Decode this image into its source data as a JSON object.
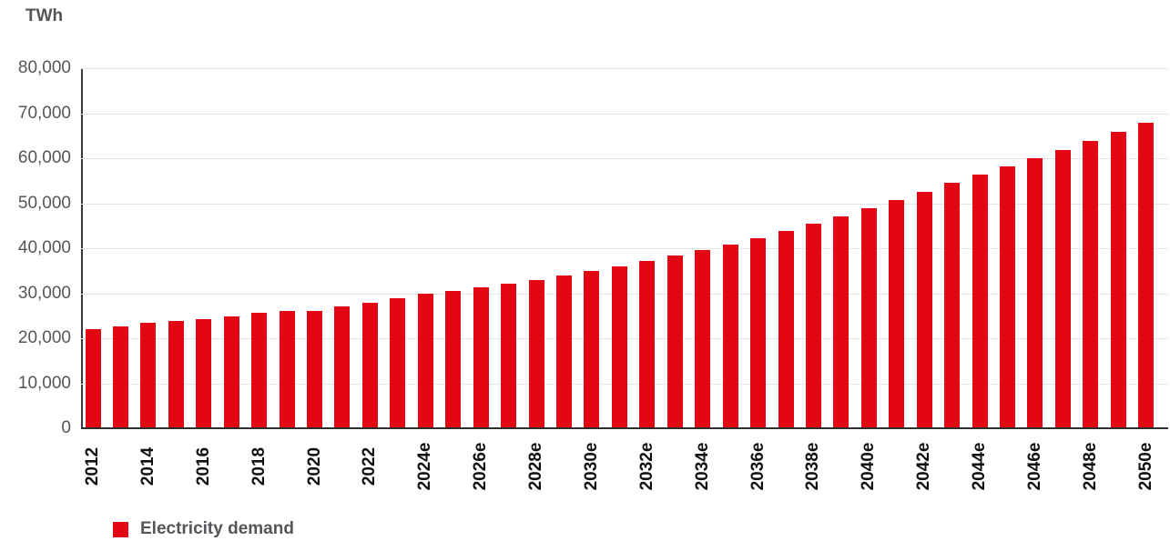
{
  "legend": {
    "label": "Electricity demand"
  },
  "colors": {
    "bar": "#e30613",
    "grid": "#e4e4e4",
    "axis": "#3a3a3a",
    "gray_text": "#55565a",
    "black_text": "#111111"
  },
  "chart_data": {
    "type": "bar",
    "title": "",
    "xlabel": "",
    "ylabel": "TWh",
    "ylim": [
      0,
      80000
    ],
    "grid": true,
    "legend_position": "bottom-left",
    "series_name": "Electricity demand",
    "y_ticks": [
      0,
      10000,
      20000,
      30000,
      40000,
      50000,
      60000,
      70000,
      80000
    ],
    "y_tick_labels": [
      "0",
      "10,000",
      "20,000",
      "30,000",
      "40,000",
      "50,000",
      "60,000",
      "70,000",
      "80,000"
    ],
    "x_tick_labels_shown": [
      "2012",
      "2014",
      "2016",
      "2018",
      "2020",
      "2022",
      "2024e",
      "2026e",
      "2028e",
      "2030e",
      "2032e",
      "2034e",
      "2036e",
      "2038e",
      "2040e",
      "2042e",
      "2044e",
      "2046e",
      "2048e",
      "2050e"
    ],
    "categories": [
      "2012",
      "2013",
      "2014",
      "2015",
      "2016",
      "2017",
      "2018",
      "2019",
      "2020",
      "2021",
      "2022",
      "2023",
      "2024e",
      "2025e",
      "2026e",
      "2027e",
      "2028e",
      "2029e",
      "2030e",
      "2031e",
      "2032e",
      "2033e",
      "2034e",
      "2035e",
      "2036e",
      "2037e",
      "2038e",
      "2039e",
      "2040e",
      "2041e",
      "2042e",
      "2043e",
      "2044e",
      "2045e",
      "2046e",
      "2047e",
      "2048e",
      "2049e",
      "2050e"
    ],
    "values": [
      22100,
      22700,
      23400,
      23800,
      24300,
      24900,
      25600,
      26100,
      26000,
      27100,
      27800,
      28900,
      29900,
      30600,
      31300,
      32100,
      33000,
      34000,
      34900,
      36000,
      37100,
      38300,
      39500,
      40800,
      42300,
      43800,
      45400,
      47100,
      48900,
      50700,
      52600,
      54500,
      56300,
      58200,
      60100,
      61900,
      63900,
      65800,
      67900
    ]
  }
}
